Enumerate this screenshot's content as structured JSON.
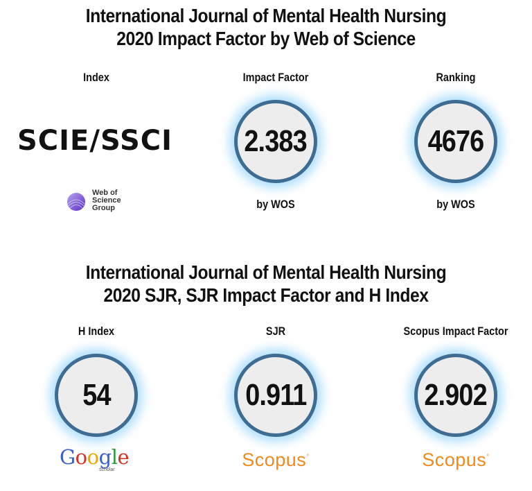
{
  "section1": {
    "title_line1": "International Journal of Mental Health Nursing",
    "title_line2": "2020 Impact Factor by Web of Science",
    "index_label": "Index",
    "index_value": "SCIE/SSCI",
    "wos_logo_text": "Web of\nScience\nGroup",
    "impact_label": "Impact Factor",
    "impact_value": "2.383",
    "impact_source": "by WOS",
    "ranking_label": "Ranking",
    "ranking_value": "4676",
    "ranking_source": "by WOS"
  },
  "section2": {
    "title_line1": "International Journal of Mental Health Nursing",
    "title_line2": "2020 SJR, SJR Impact Factor and H Index",
    "hindex_label": "H Index",
    "hindex_value": "54",
    "hindex_source_logo": "Google",
    "hindex_source_sub": "scholar",
    "sjr_label": "SJR",
    "sjr_value": "0.911",
    "sjr_source_logo": "Scopus",
    "scopus_if_label": "Scopus Impact Factor",
    "scopus_if_value": "2.902",
    "scopus_if_source_logo": "Scopus"
  },
  "colors": {
    "ring": "#3e6c92",
    "glow": "#78c8fa",
    "circle_fill": "#ededed",
    "scopus_orange": "#f08a1c",
    "wos_purple": "#6a3fd0"
  }
}
